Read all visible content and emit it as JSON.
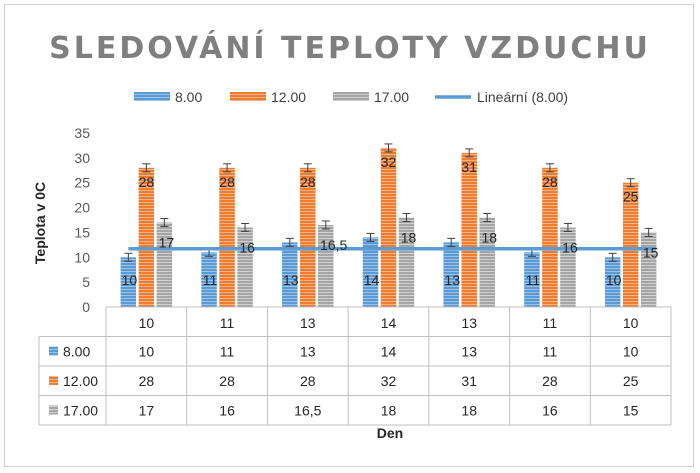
{
  "chart_data": {
    "type": "bar",
    "title": "SLEDOVÁNÍ TEPLOTY VZDUCHU",
    "xlabel": "Den",
    "ylabel": "Teplota v 0C",
    "ylim": [
      0,
      35
    ],
    "yticks": [
      0,
      5,
      10,
      15,
      20,
      25,
      30,
      35
    ],
    "categories": [
      "10",
      "11",
      "13",
      "14",
      "13",
      "11",
      "10"
    ],
    "series": [
      {
        "name": "8.00",
        "values": [
          10,
          11,
          13,
          14,
          13,
          11,
          10
        ],
        "labels": [
          "10",
          "11",
          "13",
          "14",
          "13",
          "11",
          "10"
        ],
        "color": "#5b9bd5"
      },
      {
        "name": "12.00",
        "values": [
          28,
          28,
          28,
          32,
          31,
          28,
          25
        ],
        "labels": [
          "28",
          "28",
          "28",
          "32",
          "31",
          "28",
          "25"
        ],
        "color": "#ed7d31"
      },
      {
        "name": "17.00",
        "values": [
          17,
          16,
          16.5,
          18,
          18,
          16,
          15
        ],
        "labels": [
          "17",
          "16",
          "16,5",
          "18",
          "18",
          "16",
          "15"
        ],
        "color": "#a5a5a5"
      }
    ],
    "trendline": {
      "name": "Lineární (8.00)",
      "series": "8.00",
      "color": "#5b9bd5"
    },
    "error_bars": true,
    "data_table": true,
    "legend": "top",
    "grid": false
  }
}
